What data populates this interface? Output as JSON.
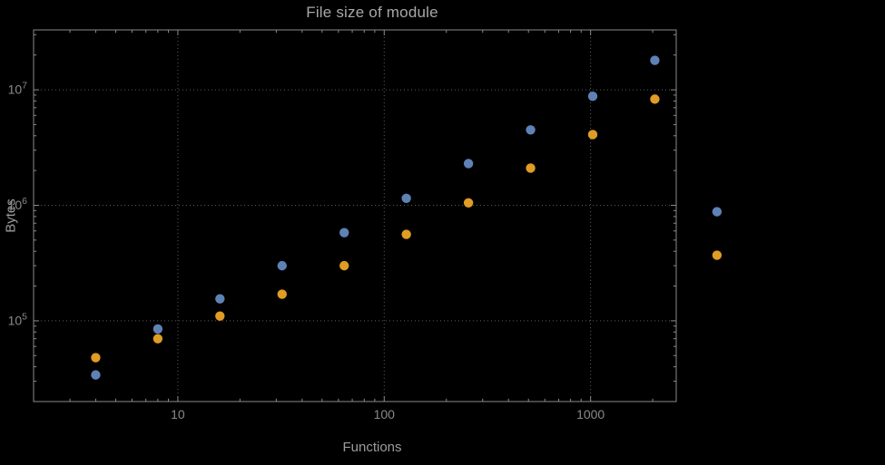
{
  "title": "File size of module",
  "axes": {
    "xlabel": "Functions",
    "ylabel": "Bytes",
    "x_tick_values": [
      10,
      100,
      1000
    ],
    "x_tick_labels": [
      "10",
      "100",
      "1000"
    ],
    "y_tick_values": [
      100000,
      1000000,
      10000000
    ],
    "y_tick_labels": [
      {
        "base": "10",
        "exp": "5"
      },
      {
        "base": "10",
        "exp": "6"
      },
      {
        "base": "10",
        "exp": "7"
      }
    ]
  },
  "colors": {
    "background": "#000000",
    "frame": "#8a8a8a",
    "grid": "#5c5c5c",
    "tick_text": "#8a8a8a",
    "title_text": "#a8a8a8",
    "label_text": "#9c9c9c",
    "series_blue": "#5e82b5",
    "series_orange": "#e09c24"
  },
  "chart_data": {
    "type": "scatter",
    "title": "File size of module",
    "xlabel": "Functions",
    "ylabel": "Bytes",
    "x_scale": "log",
    "y_scale": "log",
    "grid": true,
    "legend": "none",
    "xlim": [
      2,
      2600
    ],
    "ylim": [
      20000,
      33000000
    ],
    "x": [
      4,
      8,
      16,
      32,
      64,
      128,
      256,
      512,
      1024,
      2048,
      4096
    ],
    "series": [
      {
        "name": "series-blue",
        "color": "#5e82b5",
        "values": [
          34000,
          85000,
          155000,
          300000,
          580000,
          1150000,
          2300000,
          4500000,
          8800000,
          18000000,
          880000
        ]
      },
      {
        "name": "series-orange",
        "color": "#e09c24",
        "values": [
          48000,
          70000,
          110000,
          170000,
          300000,
          560000,
          1050000,
          2100000,
          4100000,
          8300000,
          370000
        ]
      }
    ]
  }
}
